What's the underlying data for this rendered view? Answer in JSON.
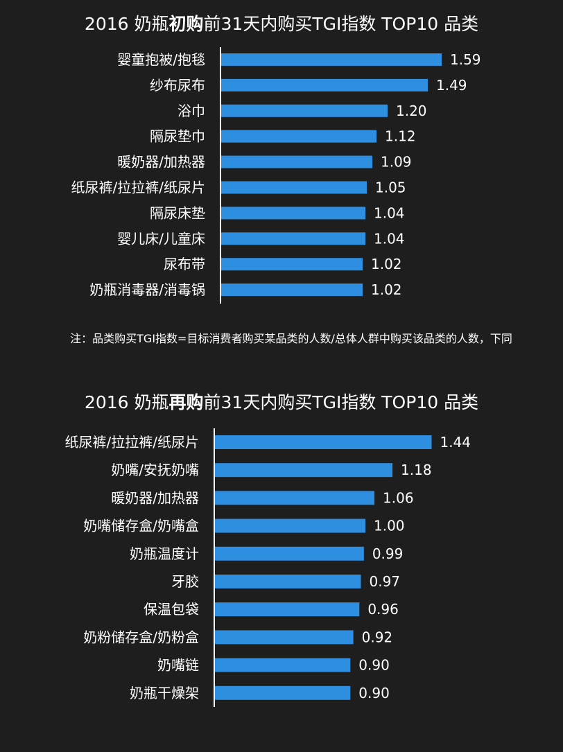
{
  "charts": [
    {
      "title_pre": "2016 奶瓶",
      "title_bold": "初购",
      "title_post": "前31天内购买TGI指数 TOP10 品类"
    },
    {
      "title_pre": "2016 奶瓶",
      "title_bold": "再购",
      "title_post": "前31天内购买TGI指数 TOP10 品类"
    }
  ],
  "note": "注：品类购买TGI指数=目标消费者购买某品类的人数/总体人群中购买该品类的人数，下同",
  "colors": {
    "bar": "#2e8fe0",
    "background": "#1e1e1e",
    "text": "#ffffff"
  },
  "chart_data": [
    {
      "type": "bar",
      "orientation": "horizontal",
      "title": "2016 奶瓶初购前31天内购买TGI指数 TOP10 品类",
      "categories": [
        "婴童抱被/抱毯",
        "纱布尿布",
        "浴巾",
        "隔尿垫巾",
        "暖奶器/加热器",
        "纸尿裤/拉拉裤/纸尿片",
        "隔尿床垫",
        "婴儿床/儿童床",
        "尿布带",
        "奶瓶消毒器/消毒锅"
      ],
      "values": [
        1.59,
        1.49,
        1.2,
        1.12,
        1.09,
        1.05,
        1.04,
        1.04,
        1.02,
        1.02
      ],
      "value_labels": [
        "1.59",
        "1.49",
        "1.20",
        "1.12",
        "1.09",
        "1.05",
        "1.04",
        "1.04",
        "1.02",
        "1.02"
      ]
    },
    {
      "type": "bar",
      "orientation": "horizontal",
      "title": "2016 奶瓶再购前31天内购买TGI指数 TOP10 品类",
      "categories": [
        "纸尿裤/拉拉裤/纸尿片",
        "奶嘴/安抚奶嘴",
        "暖奶器/加热器",
        "奶嘴储存盒/奶嘴盒",
        "奶瓶温度计",
        "牙胶",
        "保温包袋",
        "奶粉储存盒/奶粉盒",
        "奶嘴链",
        "奶瓶干燥架"
      ],
      "values": [
        1.44,
        1.18,
        1.06,
        1.0,
        0.99,
        0.97,
        0.96,
        0.92,
        0.9,
        0.9
      ],
      "value_labels": [
        "1.44",
        "1.18",
        "1.06",
        "1.00",
        "0.99",
        "0.97",
        "0.96",
        "0.92",
        "0.90",
        "0.90"
      ]
    }
  ]
}
